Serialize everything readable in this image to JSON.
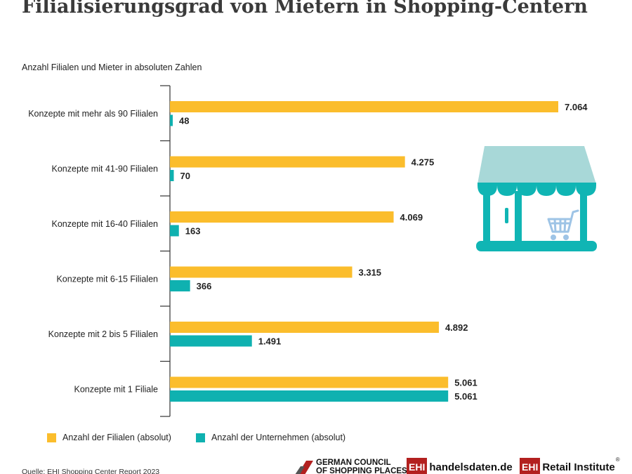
{
  "title": "Filialisierungsgrad von Mietern in Shopping-Centern",
  "subtitle": "Anzahl Filialen und Mieter in absoluten Zahlen",
  "colors": {
    "filialen": "#fbbd2c",
    "unternehmen": "#0fb1b0",
    "shop_roof": "#a8d8d8",
    "shop_body": "#10b5b4",
    "cart": "#9ec4e6"
  },
  "chart_data": {
    "type": "bar",
    "orientation": "horizontal",
    "title": "Filialisierungsgrad von Mietern in Shopping-Centern",
    "ylabel": "Anzahl Filialen und Mieter in absoluten Zahlen",
    "xlim": [
      0,
      7064
    ],
    "categories": [
      "Konzepte mit mehr als 90 Filialen",
      "Konzepte mit 41-90 Filialen",
      "Konzepte mit 16-40 Filialen",
      "Konzepte mit 6-15 Filialen",
      "Konzepte mit 2 bis 5 Filialen",
      "Konzepte mit 1 Filiale"
    ],
    "series": [
      {
        "name": "Anzahl der Filialen (absolut)",
        "values": [
          7064,
          4275,
          4069,
          3315,
          4892,
          5061
        ],
        "labels": [
          "7.064",
          "4.275",
          "4.069",
          "3.315",
          "4.892",
          "5.061"
        ]
      },
      {
        "name": "Anzahl der Unternehmen (absolut)",
        "values": [
          48,
          70,
          163,
          366,
          1491,
          5061
        ],
        "labels": [
          "48",
          "70",
          "163",
          "366",
          "1.491",
          "5.061"
        ]
      }
    ],
    "legend": "bottom-left"
  },
  "legend": {
    "filialen": "Anzahl der Filialen (absolut)",
    "unternehmen": "Anzahl der Unternehmen (absolut)"
  },
  "source": "Quelle: EHI Shopping Center Report 2023",
  "logos": {
    "gcsp_line1": "GERMAN COUNCIL",
    "gcsp_line2": "OF SHOPPING PLACES",
    "ehi_mark": "EHI",
    "handelsdaten": "handelsdaten.de",
    "retail": "Retail Institute",
    "retail_reg": "®"
  }
}
